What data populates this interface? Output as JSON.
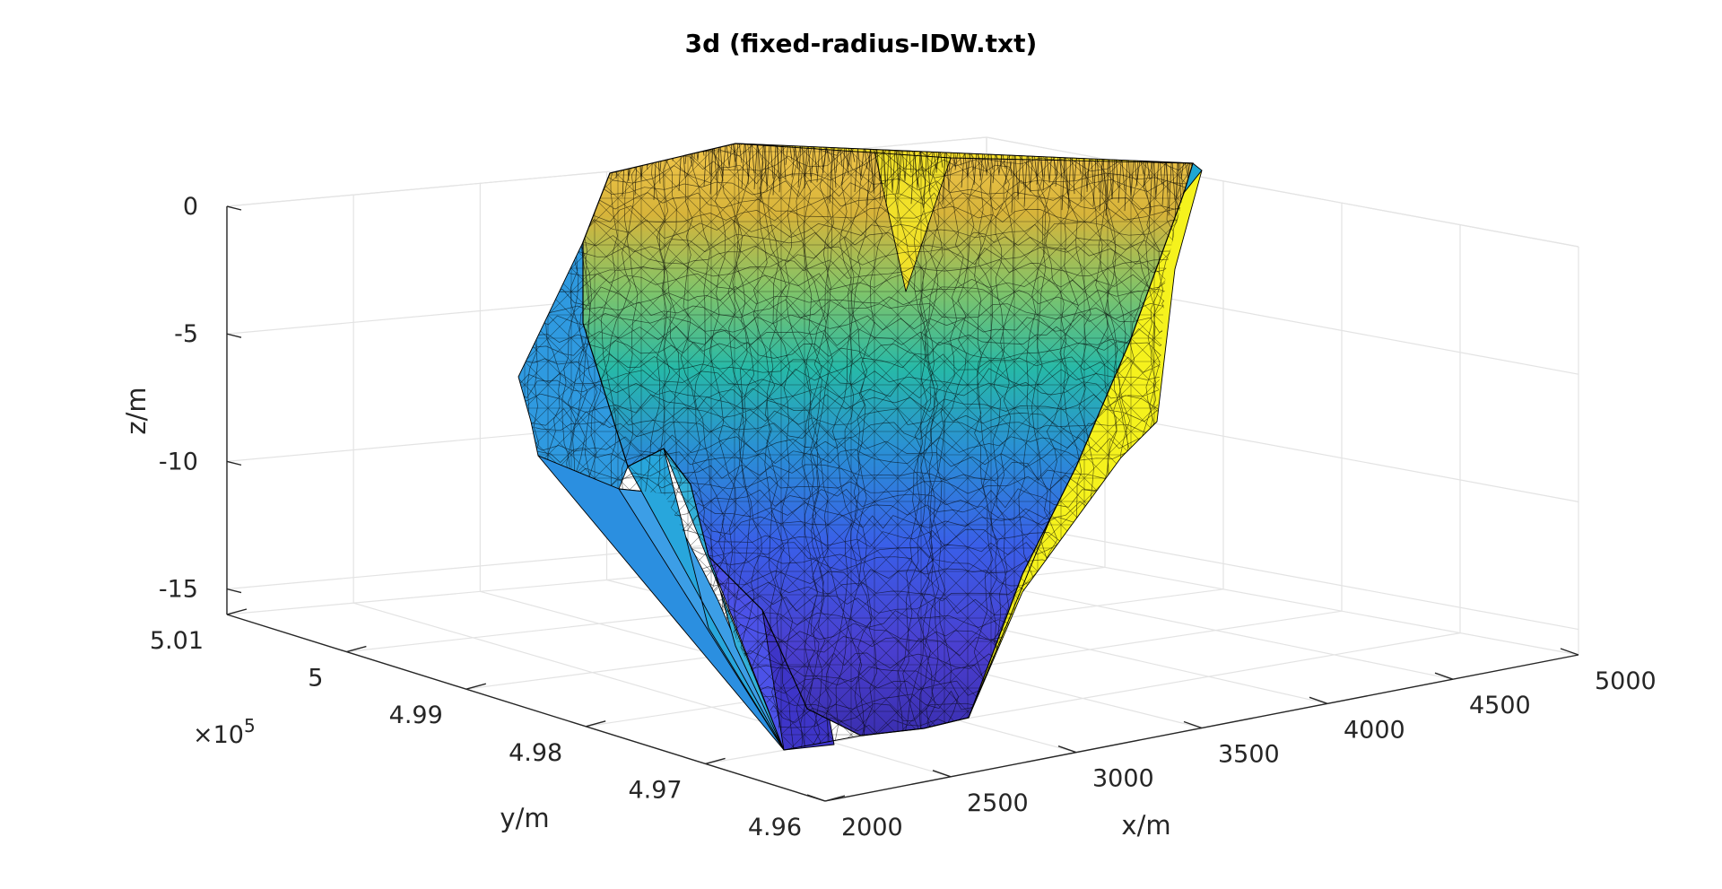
{
  "chart_data": {
    "type": "surface3d",
    "title": "3d (fixed-radius-IDW.txt)",
    "xlabel": "x/m",
    "ylabel": "y/m",
    "zlabel": "z/m",
    "x_ticks": [
      "2000",
      "2500",
      "3000",
      "3500",
      "4000",
      "4500",
      "5000"
    ],
    "y_ticks": [
      "4.96",
      "4.97",
      "4.98",
      "4.99",
      "5",
      "5.01"
    ],
    "y_exponent_base": "×10",
    "y_exponent_power": "5",
    "z_ticks": [
      "-15",
      "-10",
      "-5",
      "0"
    ],
    "xlim": [
      2000,
      5000
    ],
    "ylim": [
      496000,
      501000
    ],
    "zlim": [
      -16,
      0
    ],
    "grid": true,
    "colormap": "parula"
  }
}
